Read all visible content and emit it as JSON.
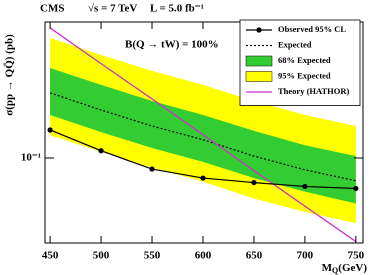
{
  "chart_data": {
    "type": "line",
    "annotations": [
      "CMS",
      "√s = 7 TeV",
      "L = 5.0 fb⁻¹",
      "B(Q → tW) = 100%"
    ],
    "y_label": "σ(pp → QQ̄) (pb)",
    "x_label": {
      "main": "M",
      "sub": "Q",
      "unit": "(GeV)"
    },
    "x": [
      450,
      500,
      550,
      600,
      650,
      700,
      750
    ],
    "series": [
      {
        "name": "95% Expected",
        "kind": "band",
        "color": "#ffff00",
        "high": [
          0.655,
          0.502,
          0.391,
          0.314,
          0.244,
          0.196,
          0.165
        ],
        "low": [
          0.143,
          0.11,
          0.086,
          0.069,
          0.053,
          0.043,
          0.036
        ]
      },
      {
        "name": "68% Expected",
        "kind": "band",
        "color": "#33cc33",
        "high": [
          0.409,
          0.314,
          0.244,
          0.196,
          0.153,
          0.122,
          0.103
        ],
        "low": [
          0.196,
          0.15,
          0.117,
          0.094,
          0.073,
          0.059,
          0.049
        ]
      },
      {
        "name": "Expected",
        "kind": "dashed",
        "color": "#000000",
        "values": [
          0.277,
          0.212,
          0.165,
          0.133,
          0.103,
          0.083,
          0.07
        ]
      },
      {
        "name": "Theory (HATHOR)",
        "kind": "solid",
        "color": "#cc33cc",
        "values": [
          0.766,
          0.438,
          0.252,
          0.144,
          0.082,
          0.047,
          0.027
        ]
      },
      {
        "name": "Observed 95% CL",
        "kind": "markers",
        "color": "#000000",
        "values": [
          0.155,
          0.112,
          0.084,
          0.073,
          0.068,
          0.064,
          0.062
        ]
      }
    ],
    "legend_order": [
      4,
      2,
      1,
      0,
      3
    ],
    "xlim": [
      445,
      757
    ],
    "xticks": [
      450,
      500,
      550,
      600,
      650,
      700,
      750
    ],
    "ylim": [
      0.0264,
      0.841
    ],
    "log_y": true,
    "yticks": [
      {
        "value": 0.1,
        "label": "10⁻¹"
      }
    ],
    "legend": "upper right"
  }
}
